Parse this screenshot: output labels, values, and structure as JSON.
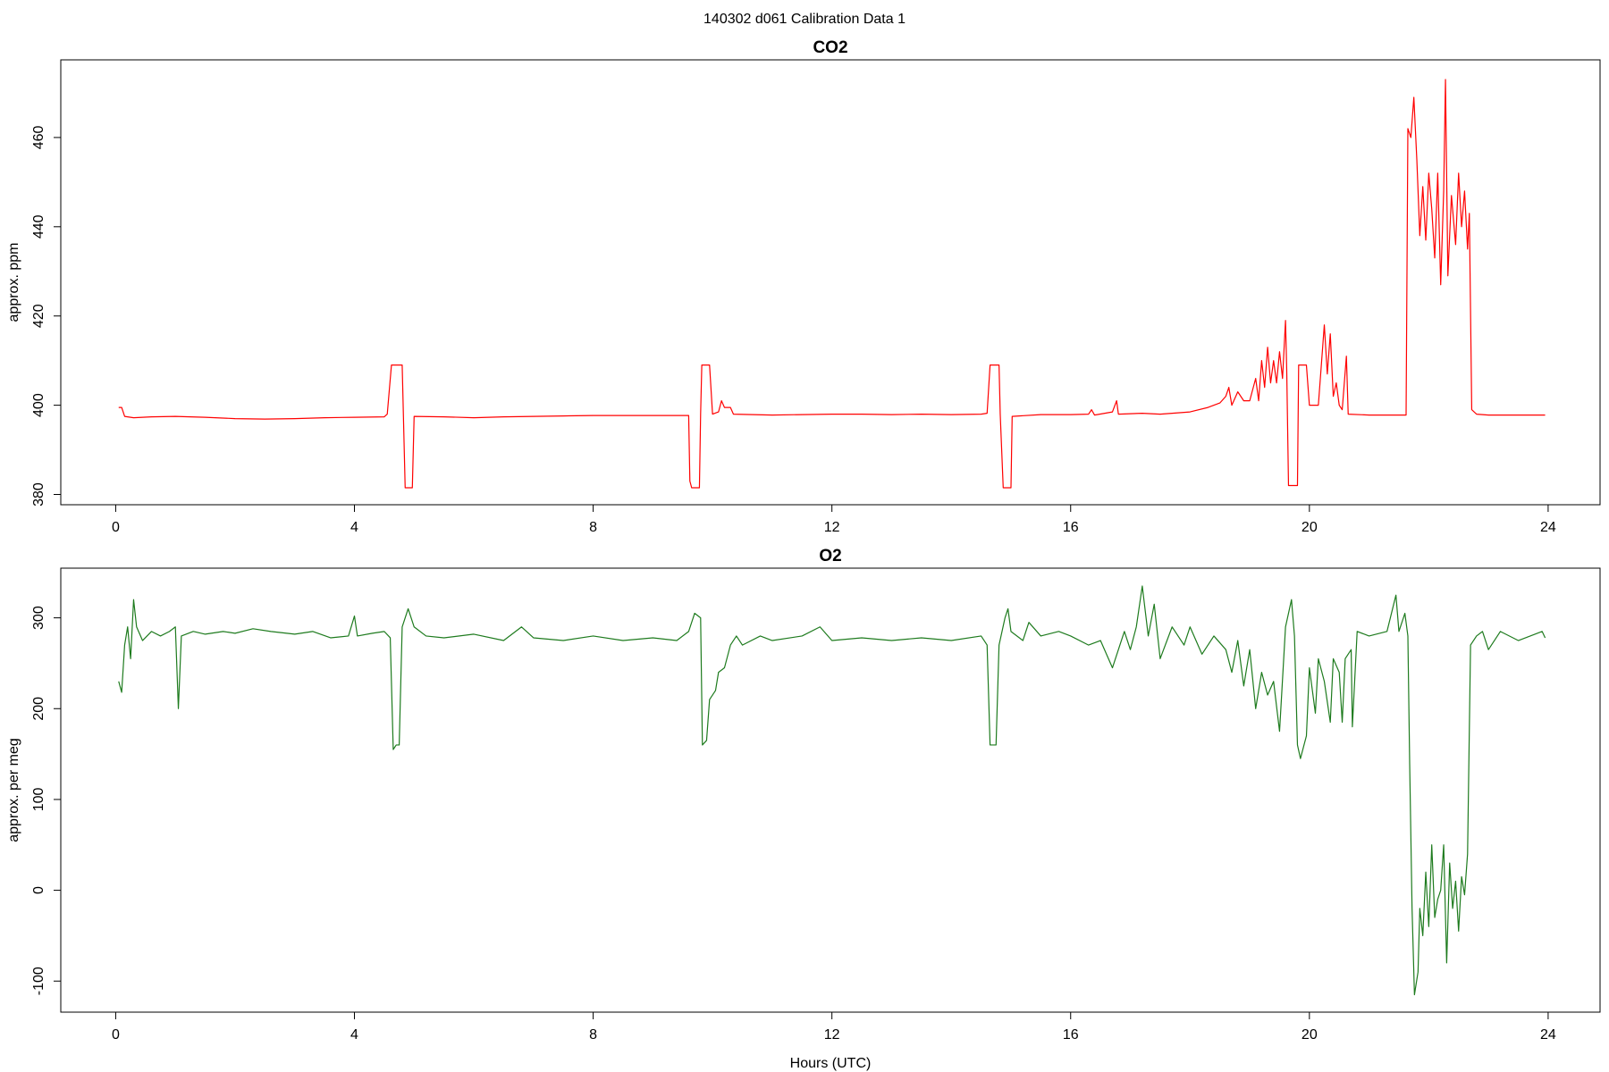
{
  "title": "140302   d061   Calibration Data 1",
  "chart_data": [
    {
      "type": "line",
      "title": "CO2",
      "ylabel": "approx. ppm",
      "xlim": [
        -0.92,
        24.87
      ],
      "ylim": [
        377.7,
        477.4
      ],
      "xticks": [
        0,
        4,
        8,
        12,
        16,
        20,
        24
      ],
      "yticks": [
        380,
        400,
        420,
        440,
        460
      ],
      "x": [
        0.05,
        0.1,
        0.15,
        0.3,
        0.6,
        1.0,
        1.5,
        2.0,
        2.5,
        3.0,
        3.5,
        4.0,
        4.5,
        4.55,
        4.62,
        4.8,
        4.85,
        4.97,
        5.0,
        5.5,
        6.0,
        6.5,
        7.0,
        7.5,
        8.0,
        8.5,
        9.0,
        9.5,
        9.6,
        9.62,
        9.65,
        9.78,
        9.8,
        9.82,
        9.95,
        10.0,
        10.1,
        10.15,
        10.2,
        10.3,
        10.35,
        11.0,
        11.5,
        12.0,
        12.5,
        13.0,
        13.5,
        14.0,
        14.5,
        14.6,
        14.65,
        14.8,
        14.82,
        14.87,
        15.0,
        15.02,
        15.5,
        16.0,
        16.3,
        16.35,
        16.4,
        16.7,
        16.77,
        16.8,
        17.2,
        17.5,
        18.0,
        18.3,
        18.5,
        18.6,
        18.65,
        18.7,
        18.8,
        18.9,
        19.0,
        19.1,
        19.15,
        19.2,
        19.25,
        19.3,
        19.35,
        19.4,
        19.45,
        19.5,
        19.55,
        19.6,
        19.62,
        19.65,
        19.8,
        19.82,
        19.95,
        20.0,
        20.15,
        20.2,
        20.25,
        20.3,
        20.35,
        20.4,
        20.45,
        20.5,
        20.55,
        20.62,
        20.65,
        21.0,
        21.5,
        21.62,
        21.65,
        21.7,
        21.75,
        21.8,
        21.85,
        21.9,
        21.95,
        22.0,
        22.05,
        22.1,
        22.15,
        22.2,
        22.25,
        22.28,
        22.32,
        22.38,
        22.45,
        22.5,
        22.55,
        22.6,
        22.65,
        22.68,
        22.72,
        22.8,
        23.0,
        23.5,
        23.95
      ],
      "series": [
        {
          "color": "#ff0000",
          "values": [
            399.5,
            399.5,
            397.5,
            397.2,
            397.4,
            397.5,
            397.3,
            397.0,
            396.9,
            397.0,
            397.2,
            397.3,
            397.4,
            398,
            409,
            409,
            381.5,
            381.5,
            397.5,
            397.4,
            397.2,
            397.4,
            397.5,
            397.6,
            397.7,
            397.7,
            397.7,
            397.7,
            397.7,
            383,
            381.5,
            381.5,
            398,
            409,
            409,
            398,
            398.5,
            401,
            399.5,
            399.5,
            398,
            397.8,
            397.9,
            398.0,
            398.0,
            397.9,
            398.0,
            397.9,
            398.0,
            398.2,
            409,
            409,
            398,
            381.5,
            381.5,
            397.5,
            397.9,
            397.9,
            398,
            399,
            397.8,
            398.5,
            401,
            398,
            398.2,
            398,
            398.5,
            399.5,
            400.5,
            402,
            404,
            400,
            403,
            401,
            401,
            406,
            401,
            410,
            404,
            413,
            405,
            410,
            405,
            412,
            406,
            419,
            408,
            382,
            382,
            409,
            409,
            400,
            400,
            409,
            418,
            407,
            416,
            402,
            405,
            400,
            399,
            411,
            398,
            397.8,
            397.8,
            397.8,
            462,
            460,
            469,
            455,
            438,
            449,
            437,
            452,
            444,
            433,
            452,
            427,
            448,
            473,
            429,
            447,
            436,
            452,
            440,
            448,
            435,
            443,
            399,
            398,
            397.8,
            397.8,
            397.8
          ]
        }
      ]
    },
    {
      "type": "line",
      "title": "O2",
      "ylabel": "approx. per meg",
      "xlabel": "Hours (UTC)",
      "xlim": [
        -0.92,
        24.87
      ],
      "ylim": [
        -134.2,
        354.7
      ],
      "xticks": [
        0,
        4,
        8,
        12,
        16,
        20,
        24
      ],
      "yticks": [
        -100,
        0,
        100,
        200,
        300
      ],
      "x": [
        0.05,
        0.1,
        0.15,
        0.2,
        0.25,
        0.3,
        0.35,
        0.45,
        0.6,
        0.75,
        0.9,
        1.0,
        1.05,
        1.1,
        1.3,
        1.5,
        1.8,
        2.0,
        2.3,
        2.6,
        3.0,
        3.3,
        3.6,
        3.9,
        4.0,
        4.05,
        4.3,
        4.5,
        4.6,
        4.65,
        4.7,
        4.75,
        4.8,
        4.9,
        5.0,
        5.2,
        5.5,
        6.0,
        6.5,
        6.8,
        7.0,
        7.5,
        8.0,
        8.5,
        9.0,
        9.4,
        9.6,
        9.7,
        9.8,
        9.83,
        9.9,
        9.95,
        10.05,
        10.1,
        10.2,
        10.3,
        10.4,
        10.5,
        10.8,
        11.0,
        11.5,
        11.8,
        12.0,
        12.5,
        13.0,
        13.5,
        14.0,
        14.5,
        14.6,
        14.65,
        14.75,
        14.8,
        14.9,
        14.95,
        15.0,
        15.2,
        15.3,
        15.5,
        15.8,
        16.0,
        16.3,
        16.5,
        16.7,
        16.9,
        17.0,
        17.1,
        17.2,
        17.3,
        17.4,
        17.5,
        17.7,
        17.9,
        18.0,
        18.2,
        18.4,
        18.6,
        18.7,
        18.8,
        18.9,
        19.0,
        19.1,
        19.2,
        19.3,
        19.4,
        19.5,
        19.6,
        19.7,
        19.75,
        19.8,
        19.85,
        19.95,
        20.0,
        20.1,
        20.15,
        20.25,
        20.35,
        20.4,
        20.5,
        20.55,
        20.6,
        20.7,
        20.72,
        20.8,
        21.0,
        21.3,
        21.45,
        21.5,
        21.6,
        21.65,
        21.68,
        21.72,
        21.76,
        21.82,
        21.85,
        21.9,
        21.95,
        22.0,
        22.05,
        22.1,
        22.15,
        22.2,
        22.25,
        22.3,
        22.35,
        22.4,
        22.45,
        22.5,
        22.55,
        22.6,
        22.65,
        22.7,
        22.8,
        22.9,
        23.0,
        23.2,
        23.5,
        23.7,
        23.9,
        23.95
      ],
      "series": [
        {
          "color": "#1e7b1e",
          "values": [
            230,
            218,
            270,
            290,
            255,
            320,
            290,
            275,
            285,
            280,
            285,
            290,
            200,
            280,
            285,
            282,
            285,
            283,
            288,
            285,
            282,
            285,
            278,
            280,
            302,
            280,
            283,
            285,
            278,
            155,
            160,
            160,
            290,
            310,
            290,
            280,
            278,
            282,
            275,
            290,
            278,
            275,
            280,
            275,
            278,
            275,
            285,
            305,
            300,
            160,
            165,
            210,
            220,
            240,
            245,
            270,
            280,
            270,
            280,
            275,
            280,
            290,
            275,
            278,
            275,
            278,
            275,
            280,
            270,
            160,
            160,
            270,
            300,
            310,
            285,
            275,
            295,
            280,
            285,
            280,
            270,
            275,
            245,
            285,
            265,
            290,
            335,
            280,
            315,
            255,
            290,
            270,
            290,
            260,
            280,
            265,
            240,
            275,
            225,
            265,
            200,
            240,
            215,
            230,
            175,
            290,
            320,
            280,
            160,
            145,
            170,
            245,
            195,
            255,
            230,
            185,
            255,
            240,
            185,
            255,
            265,
            180,
            285,
            280,
            285,
            325,
            285,
            305,
            280,
            140,
            -20,
            -115,
            -90,
            -20,
            -50,
            20,
            -40,
            50,
            -30,
            -10,
            0,
            50,
            -80,
            30,
            -20,
            10,
            -45,
            15,
            -5,
            40,
            270,
            280,
            285,
            265,
            285,
            275,
            280,
            285,
            278
          ]
        }
      ]
    }
  ]
}
